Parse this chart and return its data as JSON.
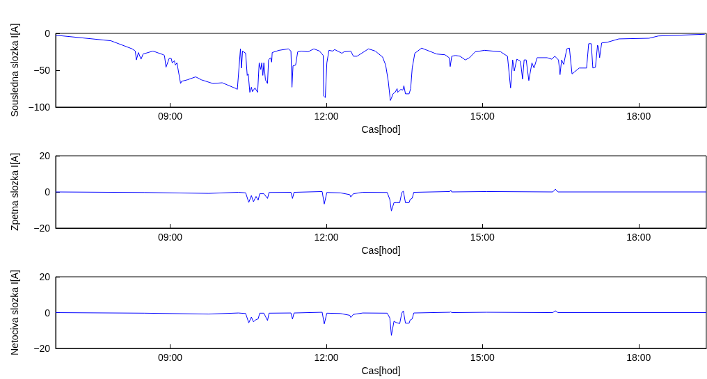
{
  "chart_data": [
    {
      "type": "line",
      "xlabel": "Cas[hod]",
      "ylabel": "Sousledna slozka I[A]",
      "color": "#0000ff",
      "x": [
        6.8,
        7.86,
        8.27,
        8.33,
        8.35,
        8.39,
        8.44,
        8.48,
        8.67,
        8.87,
        8.89,
        8.92,
        8.98,
        9.02,
        9.04,
        9.08,
        9.1,
        9.13,
        9.2,
        9.22,
        9.33,
        9.49,
        9.6,
        9.82,
        10.0,
        10.27,
        10.29,
        10.35,
        10.37,
        10.39,
        10.45,
        10.48,
        10.5,
        10.53,
        10.56,
        10.58,
        10.63,
        10.68,
        10.71,
        10.74,
        10.76,
        10.78,
        10.8,
        10.83,
        10.87,
        10.89,
        10.93,
        10.95,
        10.96,
        11.09,
        11.27,
        11.32,
        11.34,
        11.36,
        11.41,
        11.45,
        11.52,
        11.65,
        11.76,
        11.87,
        11.94,
        11.95,
        11.98,
        12.01,
        12.05,
        12.12,
        12.16,
        12.3,
        12.34,
        12.47,
        12.52,
        12.59,
        12.81,
        12.94,
        13.08,
        13.14,
        13.19,
        13.23,
        13.25,
        13.28,
        13.32,
        13.36,
        13.37,
        13.43,
        13.47,
        13.49,
        13.52,
        13.59,
        13.62,
        13.65,
        13.7,
        13.83,
        13.94,
        14.12,
        14.28,
        14.36,
        14.38,
        14.41,
        14.48,
        14.57,
        14.67,
        14.75,
        14.86,
        15.04,
        15.35,
        15.48,
        15.54,
        15.58,
        15.61,
        15.66,
        15.73,
        15.77,
        15.8,
        15.84,
        15.89,
        15.95,
        15.99,
        16.05,
        16.24,
        16.33,
        16.39,
        16.46,
        16.49,
        16.52,
        16.56,
        16.62,
        16.67,
        16.72,
        16.86,
        17.0,
        17.04,
        17.09,
        17.12,
        17.17,
        17.21,
        17.23,
        17.25,
        17.29,
        17.4,
        17.62,
        18.2,
        18.38,
        19.27
      ],
      "values": [
        -2.5,
        -10,
        -21,
        -24,
        -36,
        -26,
        -35,
        -28,
        -24,
        -29,
        -30,
        -46,
        -34,
        -34,
        -40,
        -37,
        -43,
        -40,
        -68,
        -65,
        -63,
        -59,
        -63,
        -68,
        -67,
        -75,
        -76,
        -21,
        -47,
        -24,
        -27,
        -57,
        -55,
        -80,
        -73,
        -79,
        -74,
        -80,
        -40,
        -49,
        -40,
        -57,
        -40,
        -63,
        -68,
        -36,
        -33,
        -39,
        -26,
        -23,
        -21,
        -24,
        -73,
        -44,
        -43,
        -25,
        -24,
        -25,
        -21,
        -24,
        -30,
        -85,
        -87,
        -40,
        -23,
        -24,
        -22,
        -27,
        -25,
        -24,
        -31,
        -31,
        -21,
        -24,
        -32,
        -43,
        -65,
        -91,
        -88,
        -82,
        -80,
        -75,
        -80,
        -76,
        -77,
        -71,
        -82,
        -82,
        -75,
        -47,
        -27,
        -20,
        -23,
        -28,
        -29,
        -33,
        -45,
        -31,
        -30,
        -31,
        -36,
        -33,
        -25,
        -23,
        -25,
        -31,
        -74,
        -36,
        -51,
        -35,
        -38,
        -62,
        -36,
        -36,
        -64,
        -40,
        -47,
        -33,
        -33,
        -35,
        -31,
        -36,
        -56,
        -36,
        -42,
        -21,
        -20,
        -55,
        -47,
        -47,
        -14,
        -14,
        -47,
        -46,
        -16,
        -19,
        -33,
        -13,
        -12,
        -7.5,
        -6.6,
        -3.5,
        -1.2
      ],
      "xlim": [
        6.8,
        19.3
      ],
      "xticks": [
        {
          "value": 9,
          "label": "09:00"
        },
        {
          "value": 12,
          "label": "12:00"
        },
        {
          "value": 15,
          "label": "15:00"
        },
        {
          "value": 18,
          "label": "18:00"
        }
      ],
      "ylim": [
        -100,
        0
      ],
      "yticks": [
        -100,
        -50,
        0
      ]
    },
    {
      "type": "line",
      "xlabel": "Cas[hod]",
      "ylabel": "Zpetna slozka I[A]",
      "color": "#0000ff",
      "x": [
        6.8,
        8.5,
        9.74,
        10.31,
        10.45,
        10.51,
        10.56,
        10.6,
        10.65,
        10.69,
        10.72,
        10.8,
        10.87,
        10.9,
        11.32,
        11.35,
        11.38,
        11.92,
        11.96,
        12.01,
        12.27,
        12.45,
        12.47,
        12.52,
        12.7,
        13.17,
        13.22,
        13.25,
        13.3,
        13.34,
        13.41,
        13.45,
        13.48,
        13.52,
        13.59,
        13.61,
        13.65,
        13.68,
        14.37,
        14.39,
        14.41,
        15.08,
        16.35,
        16.4,
        16.45,
        19.3
      ],
      "values": [
        0,
        -0.3,
        -0.8,
        -0.2,
        -0.5,
        -5.8,
        -2,
        -5.4,
        -2.5,
        -4.6,
        -1,
        -1,
        -3.6,
        -0.3,
        -0.2,
        -3.6,
        -0.2,
        0.2,
        -6.7,
        -0.3,
        -0.5,
        -1.5,
        -2.8,
        -1,
        -0.2,
        -0.3,
        -4.2,
        -10.5,
        -5.9,
        -5.9,
        -5.9,
        -0.3,
        0.4,
        -5.9,
        -5.9,
        -4.2,
        -3.5,
        -0.2,
        0.2,
        1,
        0,
        0.2,
        0,
        1.5,
        0,
        0
      ],
      "xlim": [
        6.8,
        19.3
      ],
      "xticks": [
        {
          "value": 9,
          "label": "09:00"
        },
        {
          "value": 12,
          "label": "12:00"
        },
        {
          "value": 15,
          "label": "15:00"
        },
        {
          "value": 18,
          "label": "18:00"
        }
      ],
      "ylim": [
        -20,
        20
      ],
      "yticks": [
        -20,
        0,
        20
      ]
    },
    {
      "type": "line",
      "xlabel": "Cas[hod]",
      "ylabel": "Netociva slozka I[A]",
      "color": "#0000ff",
      "x": [
        6.8,
        8.5,
        9.74,
        10.31,
        10.45,
        10.51,
        10.56,
        10.6,
        10.65,
        10.69,
        10.72,
        10.8,
        10.87,
        10.9,
        11.32,
        11.35,
        11.38,
        11.92,
        11.96,
        12.01,
        12.27,
        12.45,
        12.47,
        12.52,
        12.7,
        13.17,
        13.22,
        13.25,
        13.3,
        13.34,
        13.41,
        13.45,
        13.48,
        13.52,
        13.59,
        13.61,
        13.65,
        13.68,
        14.37,
        14.39,
        14.41,
        15.08,
        16.35,
        16.4,
        16.45,
        19.3
      ],
      "values": [
        0,
        -0.3,
        -0.8,
        -0.2,
        -0.5,
        -5.7,
        -2.5,
        -5.1,
        -3.9,
        -3.5,
        -0.3,
        -0.3,
        -4.4,
        -0.3,
        -0.2,
        -3.6,
        -0.2,
        0.2,
        -6.3,
        -0.3,
        -0.5,
        -1.5,
        -2.7,
        -1,
        -0.2,
        -0.3,
        -3,
        -12.7,
        -4.8,
        -5.5,
        -6.1,
        -0.3,
        1,
        -5.9,
        -5.9,
        -4.2,
        -3.5,
        -0.2,
        0.2,
        0.4,
        0,
        0.2,
        0,
        1,
        0,
        0
      ],
      "xlim": [
        6.8,
        19.3
      ],
      "xticks": [
        {
          "value": 9,
          "label": "09:00"
        },
        {
          "value": 12,
          "label": "12:00"
        },
        {
          "value": 15,
          "label": "15:00"
        },
        {
          "value": 18,
          "label": "18:00"
        }
      ],
      "ylim": [
        -20,
        20
      ],
      "yticks": [
        -20,
        0,
        20
      ]
    }
  ]
}
